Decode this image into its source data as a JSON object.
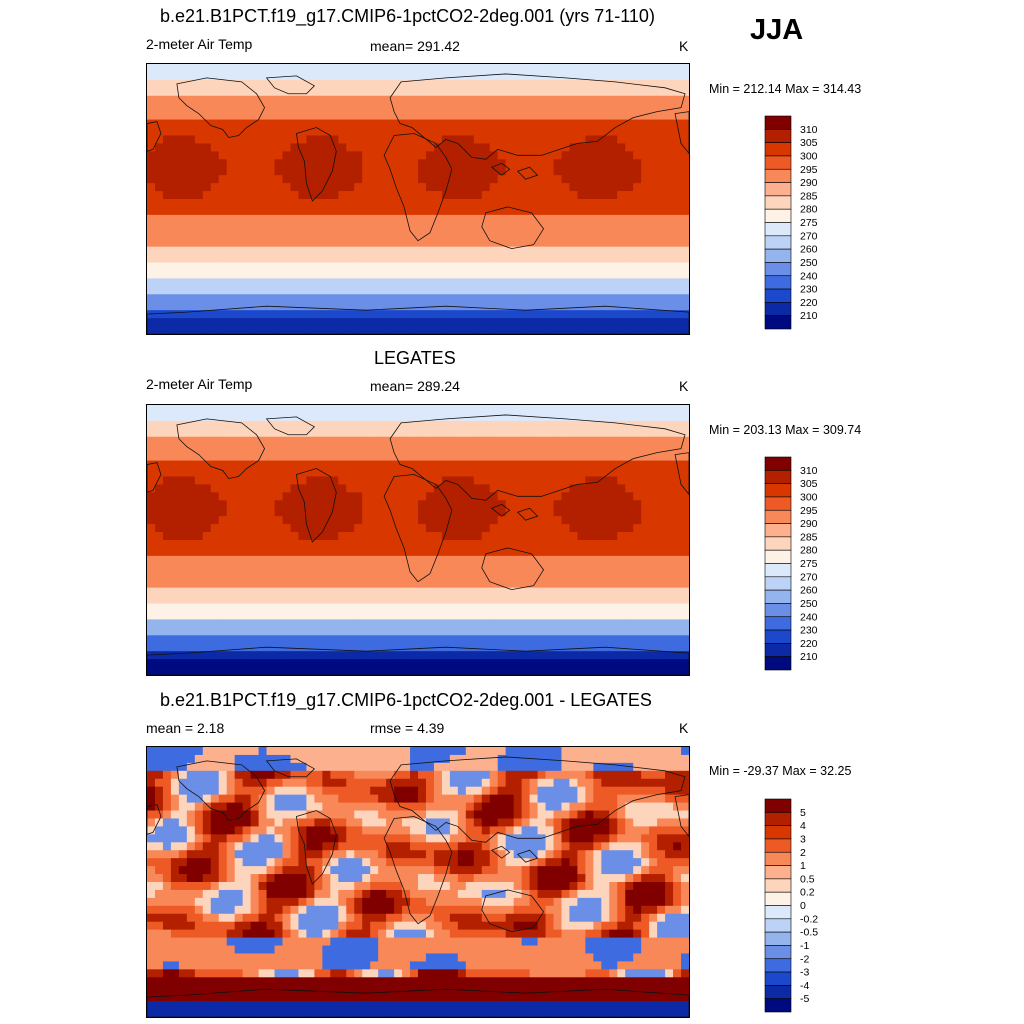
{
  "header": {
    "season": "JJA"
  },
  "panels": [
    {
      "title": "b.e21.B1PCT.f19_g17.CMIP6-1pctCO2-2deg.001 (yrs 71-110)",
      "left_label": "2-meter Air Temp",
      "center_label": "mean= 291.42",
      "units": "K",
      "minmax": "Min = 212.14 Max = 314.43"
    },
    {
      "title": "LEGATES",
      "left_label": "2-meter Air Temp",
      "center_label": "mean= 289.24",
      "units": "K",
      "minmax": "Min = 203.13 Max = 309.74"
    },
    {
      "title": "b.e21.B1PCT.f19_g17.CMIP6-1pctCO2-2deg.001 - LEGATES",
      "left_label": "mean =   2.18",
      "center_label": "rmse =   4.39",
      "units": "K",
      "minmax": "Min = -29.37 Max =  32.25"
    }
  ],
  "chart_data": [
    {
      "type": "heatmap",
      "title": "b.e21.B1PCT.f19_g17.CMIP6-1pctCO2-2deg.001 (yrs 71-110)",
      "variable": "2-meter Air Temp",
      "units": "K",
      "mean": 291.42,
      "min": 212.14,
      "max": 314.43,
      "colorbar_levels": [
        310,
        305,
        300,
        295,
        290,
        285,
        280,
        275,
        270,
        260,
        250,
        240,
        230,
        220,
        210
      ],
      "colorbar_colors": [
        "#800000",
        "#b22000",
        "#d83800",
        "#ee5a26",
        "#f88858",
        "#fcb08e",
        "#fdd4bc",
        "#fef1e6",
        "#dce9fb",
        "#bcd2f6",
        "#94b4ee",
        "#6b8fe6",
        "#3e6ce0",
        "#1c49cc",
        "#0d2aa6",
        "#000a80"
      ]
    },
    {
      "type": "heatmap",
      "title": "LEGATES",
      "variable": "2-meter Air Temp",
      "units": "K",
      "mean": 289.24,
      "min": 203.13,
      "max": 309.74,
      "colorbar_levels": [
        310,
        305,
        300,
        295,
        290,
        285,
        280,
        275,
        270,
        260,
        250,
        240,
        230,
        220,
        210
      ],
      "colorbar_colors": [
        "#800000",
        "#b22000",
        "#d83800",
        "#ee5a26",
        "#f88858",
        "#fcb08e",
        "#fdd4bc",
        "#fef1e6",
        "#dce9fb",
        "#bcd2f6",
        "#94b4ee",
        "#6b8fe6",
        "#3e6ce0",
        "#1c49cc",
        "#0d2aa6",
        "#000a80"
      ]
    },
    {
      "type": "heatmap",
      "title": "b.e21.B1PCT.f19_g17.CMIP6-1pctCO2-2deg.001 - LEGATES",
      "units": "K",
      "mean": 2.18,
      "rmse": 4.39,
      "min": -29.37,
      "max": 32.25,
      "colorbar_levels": [
        "5",
        "4",
        "3",
        "2",
        "1",
        "0.5",
        "0.2",
        "0",
        "-0.2",
        "-0.5",
        "-1",
        "-2",
        "-3",
        "-4",
        "-5"
      ],
      "colorbar_colors": [
        "#800000",
        "#b22000",
        "#d83800",
        "#ee5a26",
        "#f88858",
        "#fcb08e",
        "#fdd4bc",
        "#fef1e6",
        "#dce9fb",
        "#bcd2f6",
        "#94b4ee",
        "#6b8fe6",
        "#3e6ce0",
        "#1c49cc",
        "#0d2aa6",
        "#000a80"
      ]
    }
  ]
}
